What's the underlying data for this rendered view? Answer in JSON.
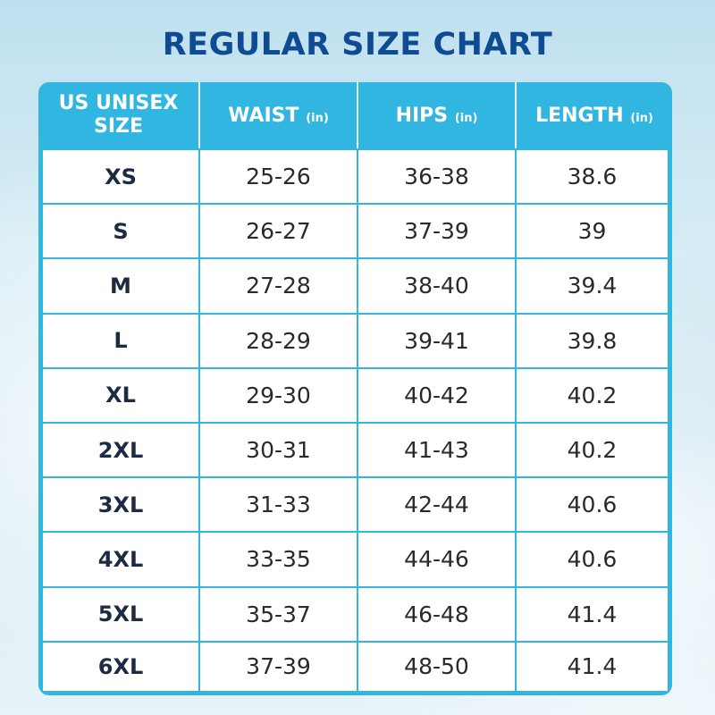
{
  "title": "REGULAR SIZE CHART",
  "chart_data": {
    "type": "table",
    "title": "REGULAR SIZE CHART",
    "columns": [
      {
        "label": "US UNISEX SIZE",
        "unit": ""
      },
      {
        "label": "WAIST",
        "unit": "(in)"
      },
      {
        "label": "HIPS",
        "unit": "(in)"
      },
      {
        "label": "LENGTH",
        "unit": "(in)"
      }
    ],
    "rows": [
      [
        "XS",
        "25-26",
        "36-38",
        "38.6"
      ],
      [
        "S",
        "26-27",
        "37-39",
        "39"
      ],
      [
        "M",
        "27-28",
        "38-40",
        "39.4"
      ],
      [
        "L",
        "28-29",
        "39-41",
        "39.8"
      ],
      [
        "XL",
        "29-30",
        "40-42",
        "40.2"
      ],
      [
        "2XL",
        "30-31",
        "41-43",
        "40.2"
      ],
      [
        "3XL",
        "31-33",
        "42-44",
        "40.6"
      ],
      [
        "4XL",
        "33-35",
        "44-46",
        "40.6"
      ],
      [
        "5XL",
        "35-37",
        "46-48",
        "41.4"
      ],
      [
        "6XL",
        "37-39",
        "48-50",
        "41.4"
      ]
    ]
  },
  "colors": {
    "title": "#0f4b92",
    "header_bg": "#31b6e1",
    "grid": "#31b6e1",
    "size_text": "#1c2a44"
  }
}
